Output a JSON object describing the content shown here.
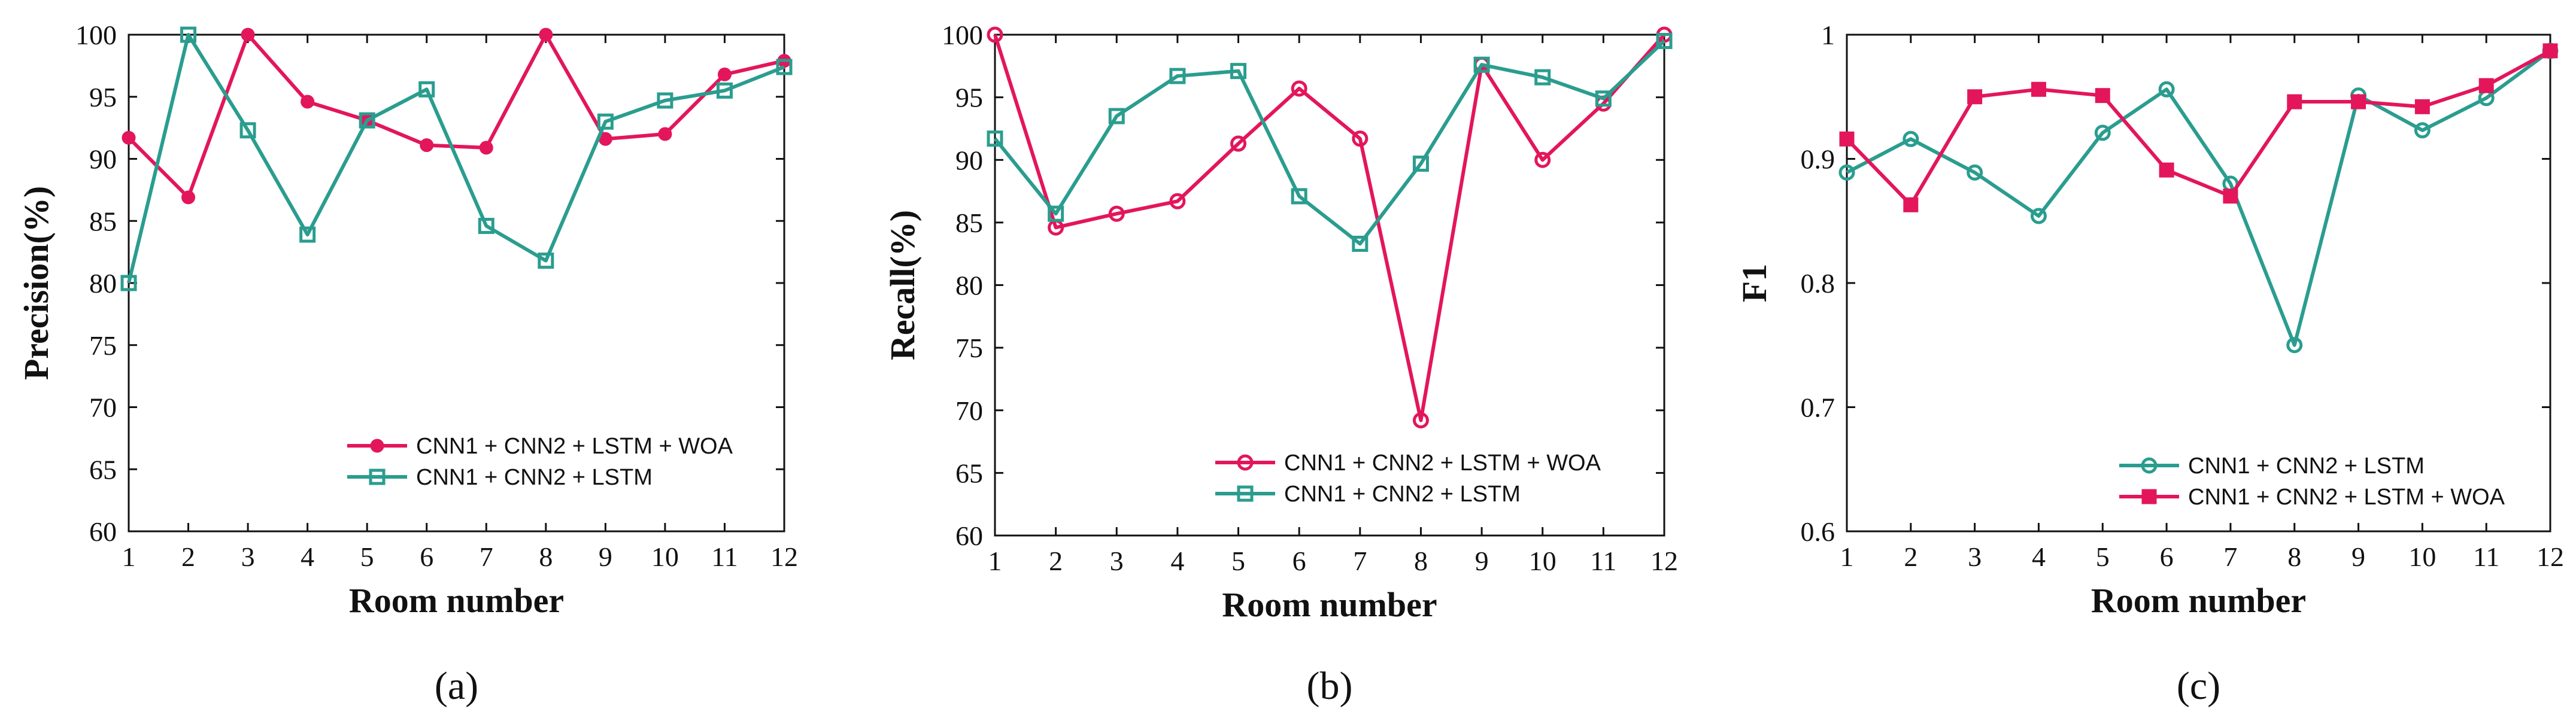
{
  "colors": {
    "woa": "#E3165B",
    "base": "#2A9D8F",
    "axis": "#111111"
  },
  "chart_data": [
    {
      "type": "line",
      "panel_label": "(a)",
      "xlabel": "Room number",
      "ylabel": "Precision(%)",
      "x": [
        1,
        2,
        3,
        4,
        5,
        6,
        7,
        8,
        9,
        10,
        11,
        12
      ],
      "xlim": [
        1,
        12
      ],
      "ylim": [
        60,
        100
      ],
      "xticks": [
        "1",
        "2",
        "3",
        "4",
        "5",
        "6",
        "7",
        "8",
        "9",
        "10",
        "11",
        "12"
      ],
      "yticks": [
        60,
        65,
        70,
        75,
        80,
        85,
        90,
        95,
        100
      ],
      "legend_position": "bottom-right",
      "series": [
        {
          "name": "CNN1 + CNN2 + LSTM + WOA",
          "color": "#E3165B",
          "marker": "filled-circle",
          "values": [
            91.7,
            86.9,
            100,
            94.6,
            93.1,
            91.1,
            90.9,
            100,
            91.6,
            92.0,
            96.8,
            97.9
          ]
        },
        {
          "name": "CNN1 + CNN2 + LSTM",
          "color": "#2A9D8F",
          "marker": "square",
          "values": [
            80.0,
            100,
            92.3,
            83.9,
            93.1,
            95.6,
            84.6,
            81.8,
            93.0,
            94.7,
            95.5,
            97.4
          ]
        }
      ]
    },
    {
      "type": "line",
      "panel_label": "(b)",
      "xlabel": "Room number",
      "ylabel": "Recall(%)",
      "x": [
        1,
        2,
        3,
        4,
        5,
        6,
        7,
        8,
        9,
        10,
        11,
        12
      ],
      "xlim": [
        1,
        12
      ],
      "ylim": [
        60,
        100
      ],
      "xticks": [
        "1",
        "2",
        "3",
        "4",
        "5",
        "6",
        "7",
        "8",
        "9",
        "10",
        "11",
        "12"
      ],
      "yticks": [
        60,
        65,
        70,
        75,
        80,
        85,
        90,
        95,
        100
      ],
      "legend_position": "bottom-right",
      "series": [
        {
          "name": "CNN1 + CNN2 + LSTM + WOA",
          "color": "#E3165B",
          "marker": "open-circle",
          "values": [
            100,
            84.6,
            85.7,
            86.7,
            91.3,
            95.7,
            91.7,
            69.2,
            97.6,
            90.0,
            94.5,
            100
          ]
        },
        {
          "name": "CNN1 + CNN2 + LSTM",
          "color": "#2A9D8F",
          "marker": "square",
          "values": [
            91.7,
            85.7,
            93.5,
            96.7,
            97.1,
            87.1,
            83.3,
            89.7,
            97.6,
            96.6,
            94.9,
            99.5
          ]
        }
      ]
    },
    {
      "type": "line",
      "panel_label": "(c)",
      "xlabel": "Room number",
      "ylabel": "F1",
      "x": [
        1,
        2,
        3,
        4,
        5,
        6,
        7,
        8,
        9,
        10,
        11,
        12
      ],
      "xlim": [
        1,
        12
      ],
      "ylim": [
        0.6,
        1.0
      ],
      "xticks": [
        "1",
        "2",
        "3",
        "4",
        "5",
        "6",
        "7",
        "8",
        "9",
        "10",
        "11",
        "12"
      ],
      "yticks": [
        "0.6",
        "0.7",
        "0.8",
        "0.9",
        "1"
      ],
      "legend_position": "bottom-right",
      "series": [
        {
          "name": "CNN1 + CNN2 + LSTM",
          "color": "#2A9D8F",
          "marker": "open-circle",
          "values": [
            0.889,
            0.916,
            0.889,
            0.854,
            0.921,
            0.956,
            0.88,
            0.75,
            0.951,
            0.923,
            0.949,
            0.987
          ]
        },
        {
          "name": "CNN1 + CNN2 + LSTM + WOA",
          "color": "#E3165B",
          "marker": "filled-square",
          "values": [
            0.916,
            0.863,
            0.95,
            0.956,
            0.951,
            0.891,
            0.87,
            0.946,
            0.946,
            0.942,
            0.959,
            0.987
          ]
        }
      ]
    }
  ]
}
